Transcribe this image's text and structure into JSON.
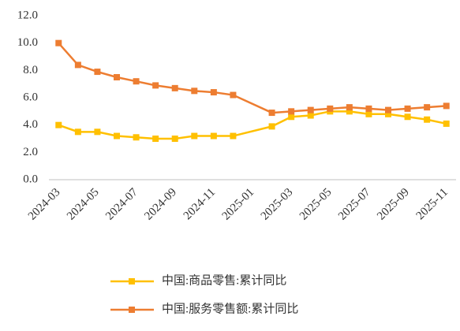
{
  "chart_data": {
    "type": "line",
    "categories": [
      "2024-03",
      null,
      "2024-05",
      null,
      "2024-07",
      null,
      "2024-09",
      null,
      "2024-11",
      null,
      "2025-01",
      null,
      "2025-03",
      null,
      "2025-05",
      null,
      "2025-07",
      null,
      "2025-09",
      null,
      "2025-11"
    ],
    "series": [
      {
        "name": "中国:商品零售:累计同比",
        "color": "#ffc000",
        "values": [
          4.0,
          3.5,
          3.5,
          3.2,
          3.1,
          3.0,
          3.0,
          3.2,
          3.2,
          3.2,
          null,
          3.9,
          4.6,
          4.7,
          5.0,
          5.0,
          4.8,
          4.8,
          4.6,
          4.4,
          4.1
        ]
      },
      {
        "name": "中国:服务零售额:累计同比",
        "color": "#ed7d31",
        "values": [
          10.0,
          8.4,
          7.9,
          7.5,
          7.2,
          6.9,
          6.7,
          6.5,
          6.4,
          6.2,
          null,
          4.9,
          5.0,
          5.1,
          5.2,
          5.3,
          5.2,
          5.1,
          5.2,
          5.3,
          5.4
        ]
      }
    ],
    "connect_gaps": true,
    "ylim": [
      0,
      12
    ],
    "yticks": [
      {
        "value": 0,
        "label": "0.0"
      },
      {
        "value": 2,
        "label": "2.0"
      },
      {
        "value": 4,
        "label": "4.0"
      },
      {
        "value": 6,
        "label": "6.0"
      },
      {
        "value": 8,
        "label": "8.0"
      },
      {
        "value": 10,
        "label": "10.0"
      },
      {
        "value": 12,
        "label": "12.0"
      }
    ],
    "legend": "bottom"
  }
}
